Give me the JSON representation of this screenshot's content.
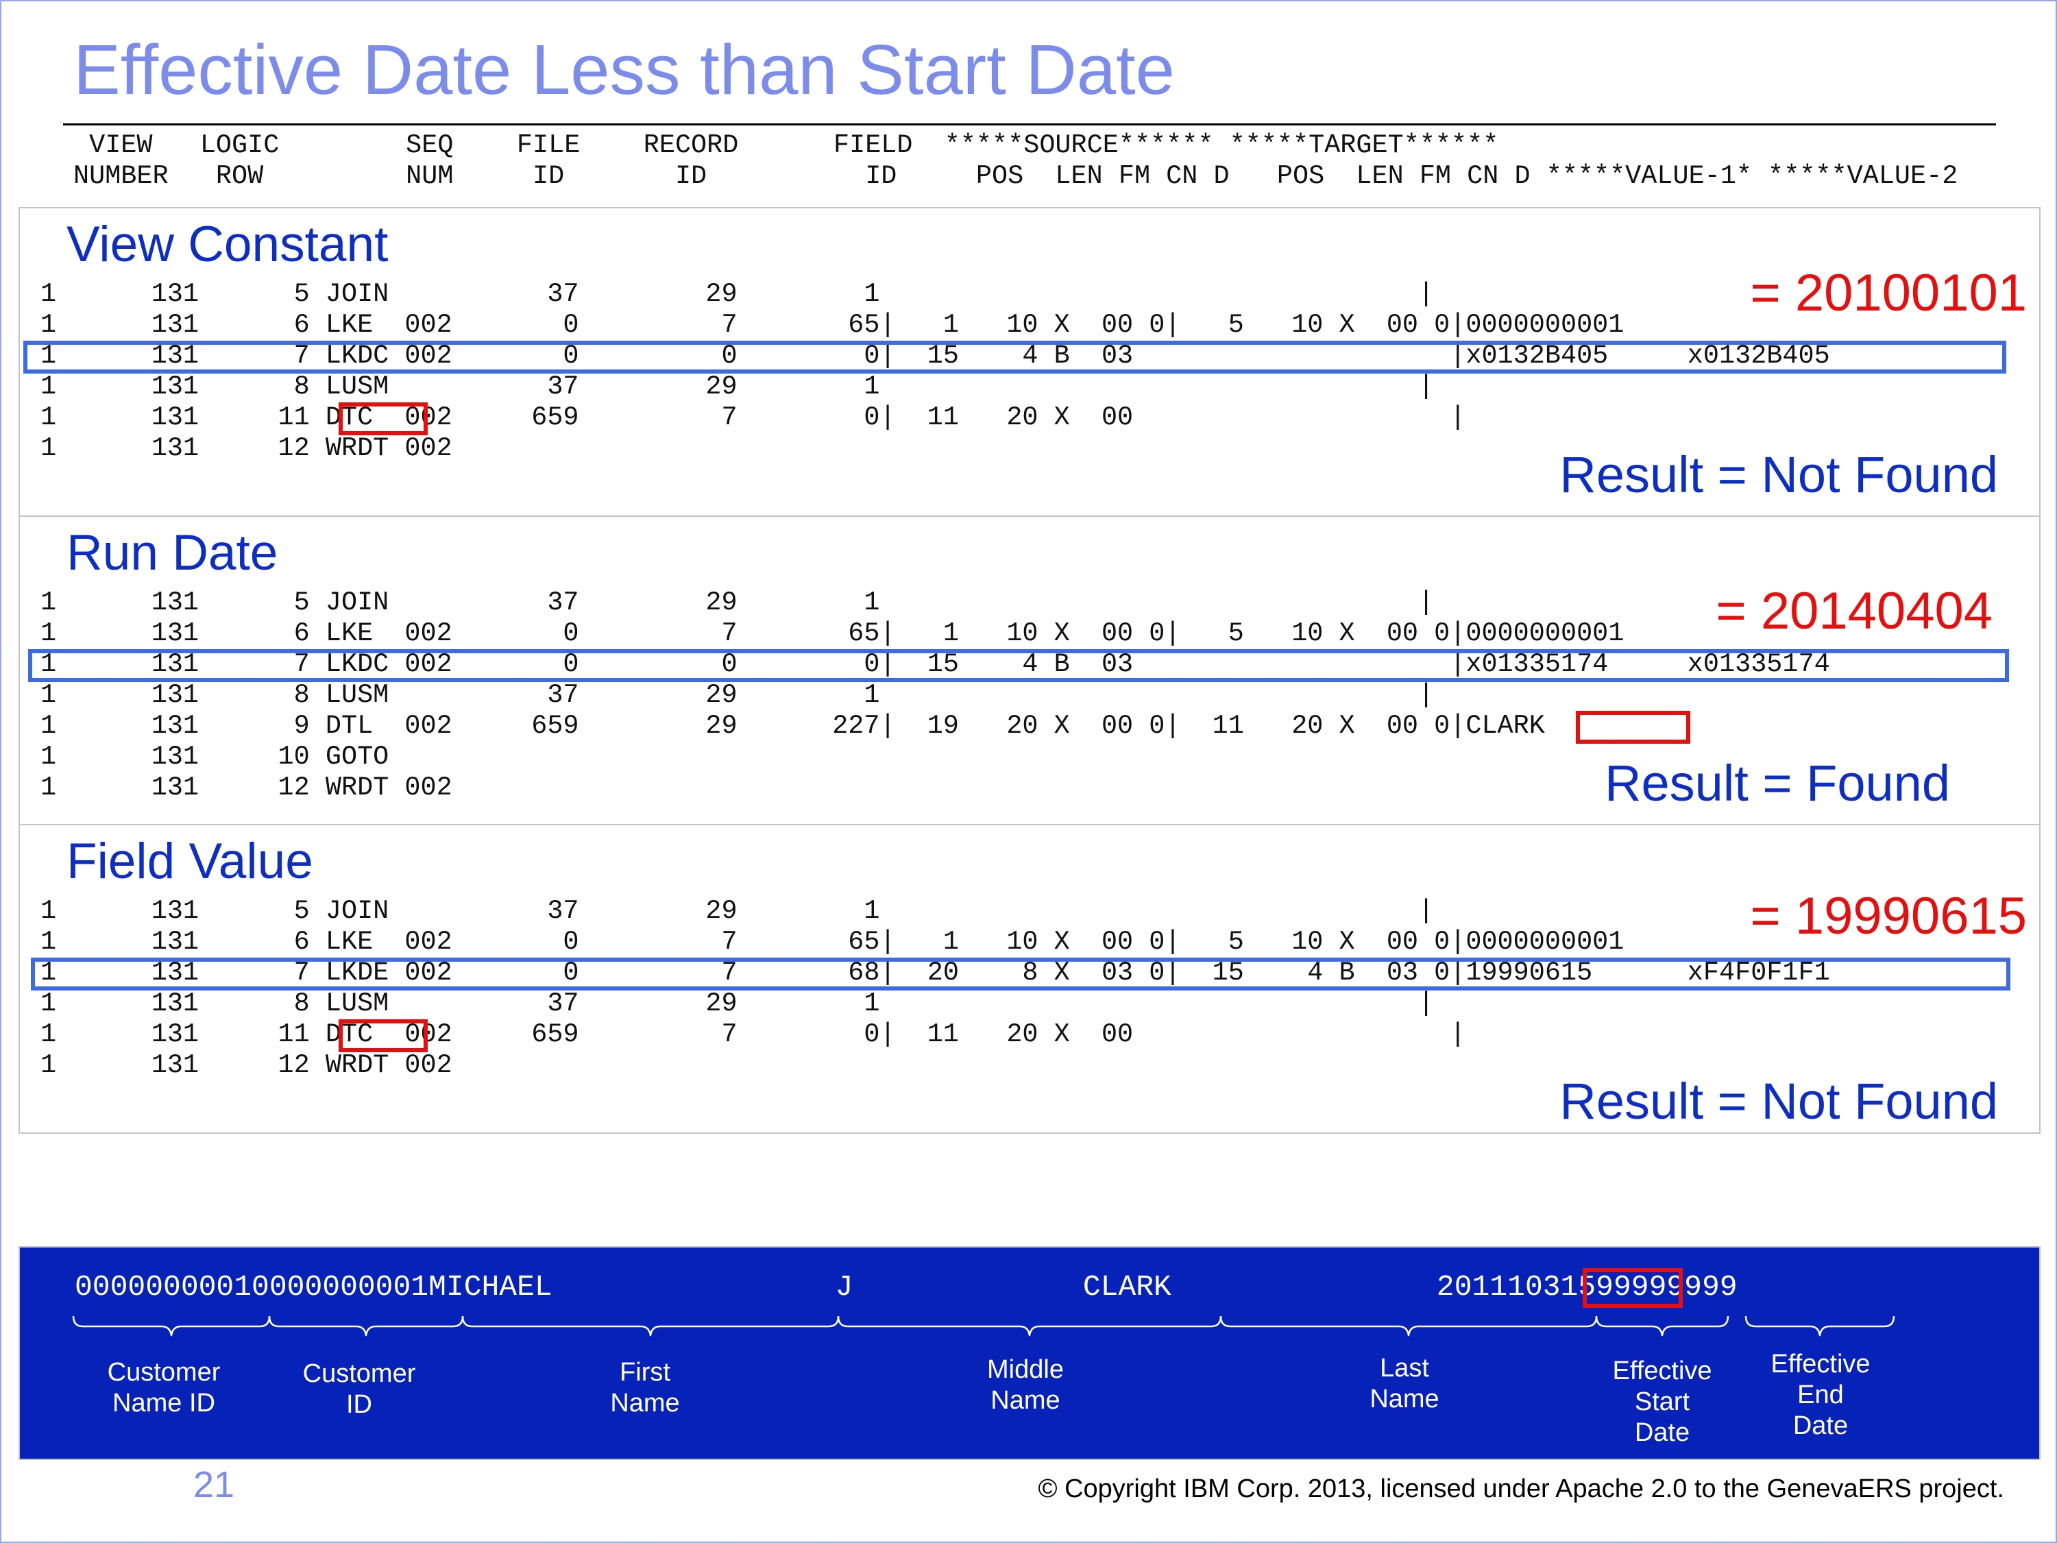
{
  "slide": {
    "title": "Effective Date Less than Start Date",
    "header_lines": [
      " VIEW   LOGIC        SEQ    FILE    RECORD      FIELD  *****SOURCE****** *****TARGET******",
      "NUMBER   ROW         NUM     ID       ID          ID     POS  LEN FM CN D   POS  LEN FM CN D *****VALUE-1* *****VALUE-2"
    ],
    "panels": [
      {
        "title": "View Constant",
        "lines": [
          "1      131      5 JOIN          37        29        1                                  |",
          "1      131      6 LKE  002       0         7       65|   1   10 X  00 0|   5   10 X  00 0|0000000001",
          "1      131      7 LKDC 002       0         0        0|  15    4 B  03                    |x0132B405     x0132B405",
          "1      131      8 LUSM          37        29        1                                  |",
          "1      131     11 DTC  002     659         7        0|  11   20 X  00                    |",
          "1      131     12 WRDT 002"
        ],
        "value": "= 20100101",
        "result": "Result = Not Found"
      },
      {
        "title": "Run Date",
        "lines": [
          "1      131      5 JOIN          37        29        1                                  |",
          "1      131      6 LKE  002       0         7       65|   1   10 X  00 0|   5   10 X  00 0|0000000001",
          "1      131      7 LKDC 002       0         0        0|  15    4 B  03                    |x01335174     x01335174",
          "1      131      8 LUSM          37        29        1                                  |",
          "1      131      9 DTL  002     659        29      227|  19   20 X  00 0|  11   20 X  00 0|CLARK",
          "1      131     10 GOTO",
          "1      131     12 WRDT 002"
        ],
        "value": "= 20140404",
        "result": "Result = Found"
      },
      {
        "title": "Field  Value",
        "lines": [
          "1      131      5 JOIN          37        29        1                                  |",
          "1      131      6 LKE  002       0         7       65|   1   10 X  00 0|   5   10 X  00 0|0000000001",
          "1      131      7 LKDE 002       0         7       68|  20    8 X  03 0|  15    4 B  03 0|19990615      xF4F0F1F1",
          "1      131      8 LUSM          37        29        1                                  |",
          "1      131     11 DTC  002     659         7        0|  11   20 X  00                    |",
          "1      131     12 WRDT 002"
        ],
        "value": "= 19990615",
        "result": "Result = Not Found"
      }
    ],
    "record": {
      "string": "00000000010000000001MICHAEL                J             CLARK               20111031599999999",
      "fields": [
        {
          "label": "Customer\nName ID"
        },
        {
          "label": "Customer\nID"
        },
        {
          "label": "First\nName"
        },
        {
          "label": "Middle\nName"
        },
        {
          "label": "Last\nName"
        },
        {
          "label": "Effective\nStart\nDate"
        },
        {
          "label": "Effective\nEnd\nDate"
        }
      ]
    },
    "page_number": "21",
    "copyright": "© Copyright IBM Corp. 2013, licensed under Apache 2.0 to the GenevaERS project.",
    "colors": {
      "title": "#7b8cec",
      "heading": "#0c2ec6",
      "value_red": "#e80e0e",
      "highlight_blue": "#3b6be8",
      "record_bg": "#0722b8"
    }
  }
}
